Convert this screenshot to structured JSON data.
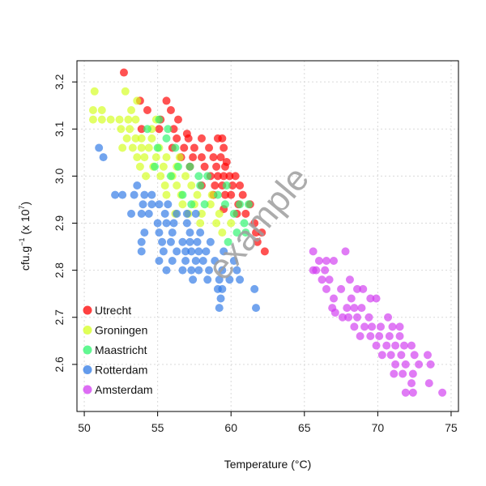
{
  "chart_data": {
    "type": "scatter",
    "title": "",
    "xlabel": "Temperature (°C)",
    "ylabel_main": "cfu.g",
    "ylabel_sup1": "−1",
    "ylabel_mid": " (x 10",
    "ylabel_sup2": "7",
    "ylabel_end": ")",
    "xlim": [
      49.5,
      75.5
    ],
    "ylim": [
      2.5,
      3.245
    ],
    "x_ticks": [
      50,
      55,
      60,
      65,
      70,
      75
    ],
    "x_tick_labels": [
      "50",
      "55",
      "60",
      "65",
      "70",
      "75"
    ],
    "y_ticks": [
      2.6,
      2.7,
      2.8,
      2.9,
      3.0,
      3.1,
      3.2
    ],
    "y_tick_labels": [
      "2.6",
      "2.7",
      "2.8",
      "2.9",
      "3.0",
      "3.1",
      "3.2"
    ],
    "grid": true,
    "legend_position": "bottom-left",
    "watermark": "example",
    "series": [
      {
        "name": "Utrecht",
        "color": "#ff0000",
        "points": [
          [
            52.7,
            3.22
          ],
          [
            53.8,
            3.16
          ],
          [
            55.6,
            3.16
          ],
          [
            54.3,
            3.14
          ],
          [
            55.9,
            3.14
          ],
          [
            55.2,
            3.12
          ],
          [
            56.4,
            3.12
          ],
          [
            53.9,
            3.1
          ],
          [
            55.1,
            3.1
          ],
          [
            56.1,
            3.1
          ],
          [
            57.0,
            3.09
          ],
          [
            56.3,
            3.08
          ],
          [
            57.1,
            3.08
          ],
          [
            58.0,
            3.08
          ],
          [
            59.1,
            3.08
          ],
          [
            59.4,
            3.08
          ],
          [
            56.0,
            3.06
          ],
          [
            56.8,
            3.06
          ],
          [
            57.5,
            3.06
          ],
          [
            58.5,
            3.06
          ],
          [
            59.5,
            3.06
          ],
          [
            56.6,
            3.04
          ],
          [
            57.4,
            3.04
          ],
          [
            58.0,
            3.04
          ],
          [
            58.8,
            3.04
          ],
          [
            59.3,
            3.04
          ],
          [
            59.7,
            3.03
          ],
          [
            57.2,
            3.02
          ],
          [
            58.2,
            3.02
          ],
          [
            59.0,
            3.02
          ],
          [
            59.6,
            3.02
          ],
          [
            58.6,
            3.0
          ],
          [
            59.1,
            3.0
          ],
          [
            59.5,
            3.0
          ],
          [
            59.9,
            3.0
          ],
          [
            60.3,
            3.0
          ],
          [
            58.0,
            2.98
          ],
          [
            58.9,
            2.98
          ],
          [
            59.4,
            2.98
          ],
          [
            60.1,
            2.98
          ],
          [
            60.6,
            2.98
          ],
          [
            58.8,
            2.96
          ],
          [
            59.6,
            2.96
          ],
          [
            60.0,
            2.96
          ],
          [
            60.8,
            2.96
          ],
          [
            60.5,
            2.94
          ],
          [
            61.3,
            2.94
          ],
          [
            59.5,
            2.93
          ],
          [
            60.4,
            2.92
          ],
          [
            61.0,
            2.92
          ],
          [
            61.6,
            2.9
          ],
          [
            61.7,
            2.88
          ],
          [
            62.1,
            2.88
          ],
          [
            61.8,
            2.86
          ],
          [
            62.3,
            2.84
          ]
        ]
      },
      {
        "name": "Groningen",
        "color": "#d4ff1f",
        "points": [
          [
            50.7,
            3.18
          ],
          [
            52.8,
            3.18
          ],
          [
            53.6,
            3.16
          ],
          [
            50.6,
            3.14
          ],
          [
            51.2,
            3.14
          ],
          [
            53.2,
            3.14
          ],
          [
            50.6,
            3.12
          ],
          [
            51.2,
            3.12
          ],
          [
            51.8,
            3.12
          ],
          [
            52.4,
            3.12
          ],
          [
            53.0,
            3.12
          ],
          [
            53.5,
            3.12
          ],
          [
            54.9,
            3.12
          ],
          [
            52.5,
            3.1
          ],
          [
            53.1,
            3.1
          ],
          [
            54.6,
            3.1
          ],
          [
            52.9,
            3.08
          ],
          [
            53.5,
            3.08
          ],
          [
            53.9,
            3.08
          ],
          [
            54.6,
            3.08
          ],
          [
            52.6,
            3.06
          ],
          [
            53.3,
            3.06
          ],
          [
            53.9,
            3.06
          ],
          [
            54.4,
            3.06
          ],
          [
            55.1,
            3.06
          ],
          [
            53.6,
            3.04
          ],
          [
            54.1,
            3.04
          ],
          [
            54.9,
            3.04
          ],
          [
            55.6,
            3.04
          ],
          [
            56.5,
            3.04
          ],
          [
            53.8,
            3.02
          ],
          [
            54.7,
            3.02
          ],
          [
            55.4,
            3.02
          ],
          [
            56.3,
            3.02
          ],
          [
            54.2,
            3.0
          ],
          [
            55.2,
            3.0
          ],
          [
            56.0,
            3.0
          ],
          [
            56.9,
            3.0
          ],
          [
            55.5,
            2.98
          ],
          [
            56.3,
            2.98
          ],
          [
            57.3,
            2.98
          ],
          [
            55.6,
            2.96
          ],
          [
            56.6,
            2.96
          ],
          [
            57.7,
            2.96
          ],
          [
            58.7,
            2.96
          ],
          [
            56.7,
            2.94
          ],
          [
            57.5,
            2.94
          ],
          [
            58.6,
            2.94
          ],
          [
            56.2,
            2.92
          ],
          [
            57.1,
            2.92
          ],
          [
            58.0,
            2.92
          ],
          [
            59.2,
            2.92
          ],
          [
            57.9,
            2.9
          ],
          [
            59.0,
            2.9
          ],
          [
            60.0,
            2.9
          ],
          [
            59.4,
            2.88
          ]
        ]
      },
      {
        "name": "Maastricht",
        "color": "#2cf56e",
        "points": [
          [
            54.3,
            3.1
          ],
          [
            55.1,
            3.12
          ],
          [
            55.7,
            3.1
          ],
          [
            55.0,
            3.06
          ],
          [
            55.6,
            3.08
          ],
          [
            56.2,
            3.06
          ],
          [
            54.8,
            3.02
          ],
          [
            55.9,
            3.0
          ],
          [
            56.4,
            3.02
          ],
          [
            57.2,
            3.02
          ],
          [
            57.8,
            3.0
          ],
          [
            57.9,
            2.98
          ],
          [
            58.4,
            3.0
          ],
          [
            59.1,
            2.96
          ],
          [
            59.7,
            2.98
          ],
          [
            58.2,
            2.94
          ],
          [
            59.6,
            2.94
          ],
          [
            60.2,
            2.92
          ],
          [
            60.9,
            2.9
          ],
          [
            60.6,
            2.94
          ],
          [
            61.2,
            2.94
          ],
          [
            60.4,
            2.88
          ],
          [
            61.0,
            2.88
          ],
          [
            59.8,
            2.86
          ],
          [
            56.7,
            2.96
          ],
          [
            57.3,
            2.94
          ]
        ]
      },
      {
        "name": "Rotterdam",
        "color": "#2f79e6",
        "points": [
          [
            51.0,
            3.06
          ],
          [
            51.3,
            3.04
          ],
          [
            52.1,
            2.96
          ],
          [
            52.6,
            2.96
          ],
          [
            53.4,
            2.96
          ],
          [
            54.1,
            2.96
          ],
          [
            54.6,
            2.96
          ],
          [
            53.6,
            2.98
          ],
          [
            54.0,
            2.94
          ],
          [
            54.6,
            2.94
          ],
          [
            55.1,
            2.94
          ],
          [
            55.7,
            2.94
          ],
          [
            53.2,
            2.92
          ],
          [
            53.9,
            2.92
          ],
          [
            54.4,
            2.92
          ],
          [
            55.5,
            2.92
          ],
          [
            56.3,
            2.92
          ],
          [
            57.0,
            2.92
          ],
          [
            57.6,
            2.92
          ],
          [
            55.0,
            2.9
          ],
          [
            55.6,
            2.9
          ],
          [
            56.1,
            2.9
          ],
          [
            57.0,
            2.9
          ],
          [
            54.1,
            2.88
          ],
          [
            55.1,
            2.88
          ],
          [
            56.0,
            2.88
          ],
          [
            57.2,
            2.88
          ],
          [
            57.9,
            2.88
          ],
          [
            53.9,
            2.86
          ],
          [
            55.3,
            2.86
          ],
          [
            55.9,
            2.86
          ],
          [
            56.7,
            2.86
          ],
          [
            57.2,
            2.86
          ],
          [
            57.7,
            2.86
          ],
          [
            58.6,
            2.86
          ],
          [
            53.9,
            2.84
          ],
          [
            55.4,
            2.84
          ],
          [
            56.3,
            2.84
          ],
          [
            56.9,
            2.84
          ],
          [
            57.3,
            2.84
          ],
          [
            57.8,
            2.84
          ],
          [
            58.3,
            2.84
          ],
          [
            59.5,
            2.84
          ],
          [
            56.0,
            2.82
          ],
          [
            56.9,
            2.82
          ],
          [
            57.6,
            2.82
          ],
          [
            58.1,
            2.82
          ],
          [
            58.9,
            2.82
          ],
          [
            60.2,
            2.82
          ],
          [
            55.1,
            2.82
          ],
          [
            55.6,
            2.8
          ],
          [
            56.7,
            2.8
          ],
          [
            57.3,
            2.8
          ],
          [
            57.8,
            2.8
          ],
          [
            58.5,
            2.8
          ],
          [
            59.4,
            2.8
          ],
          [
            60.4,
            2.8
          ],
          [
            57.4,
            2.78
          ],
          [
            58.4,
            2.78
          ],
          [
            59.2,
            2.78
          ],
          [
            59.9,
            2.78
          ],
          [
            60.6,
            2.78
          ],
          [
            59.4,
            2.76
          ],
          [
            59.1,
            2.76
          ],
          [
            61.6,
            2.76
          ],
          [
            59.3,
            2.74
          ],
          [
            59.2,
            2.72
          ],
          [
            61.7,
            2.72
          ]
        ]
      },
      {
        "name": "Amsterdam",
        "color": "#d23cf0",
        "points": [
          [
            65.6,
            2.84
          ],
          [
            67.8,
            2.84
          ],
          [
            66.0,
            2.82
          ],
          [
            66.5,
            2.82
          ],
          [
            67.0,
            2.82
          ],
          [
            65.8,
            2.8
          ],
          [
            66.4,
            2.8
          ],
          [
            65.6,
            2.8
          ],
          [
            66.2,
            2.78
          ],
          [
            66.7,
            2.78
          ],
          [
            68.1,
            2.78
          ],
          [
            66.5,
            2.76
          ],
          [
            67.5,
            2.76
          ],
          [
            68.6,
            2.76
          ],
          [
            69.0,
            2.76
          ],
          [
            68.2,
            2.74
          ],
          [
            69.5,
            2.74
          ],
          [
            69.9,
            2.74
          ],
          [
            67.0,
            2.74
          ],
          [
            67.9,
            2.72
          ],
          [
            68.4,
            2.72
          ],
          [
            68.9,
            2.72
          ],
          [
            66.9,
            2.72
          ],
          [
            67.6,
            2.7
          ],
          [
            68.0,
            2.7
          ],
          [
            68.6,
            2.7
          ],
          [
            69.4,
            2.7
          ],
          [
            70.7,
            2.7
          ],
          [
            67.1,
            2.71
          ],
          [
            68.4,
            2.68
          ],
          [
            69.1,
            2.68
          ],
          [
            69.6,
            2.68
          ],
          [
            70.2,
            2.68
          ],
          [
            71.0,
            2.68
          ],
          [
            71.5,
            2.68
          ],
          [
            68.8,
            2.66
          ],
          [
            69.5,
            2.66
          ],
          [
            70.1,
            2.66
          ],
          [
            70.8,
            2.66
          ],
          [
            71.5,
            2.66
          ],
          [
            69.9,
            2.64
          ],
          [
            70.6,
            2.64
          ],
          [
            71.2,
            2.64
          ],
          [
            71.8,
            2.64
          ],
          [
            72.3,
            2.64
          ],
          [
            70.3,
            2.62
          ],
          [
            70.9,
            2.62
          ],
          [
            71.6,
            2.62
          ],
          [
            72.5,
            2.62
          ],
          [
            73.4,
            2.62
          ],
          [
            71.2,
            2.6
          ],
          [
            71.9,
            2.6
          ],
          [
            72.8,
            2.6
          ],
          [
            73.6,
            2.6
          ],
          [
            71.1,
            2.58
          ],
          [
            71.7,
            2.58
          ],
          [
            72.4,
            2.58
          ],
          [
            72.3,
            2.56
          ],
          [
            73.5,
            2.56
          ],
          [
            71.9,
            2.54
          ],
          [
            72.4,
            2.54
          ],
          [
            74.4,
            2.54
          ]
        ]
      }
    ]
  }
}
